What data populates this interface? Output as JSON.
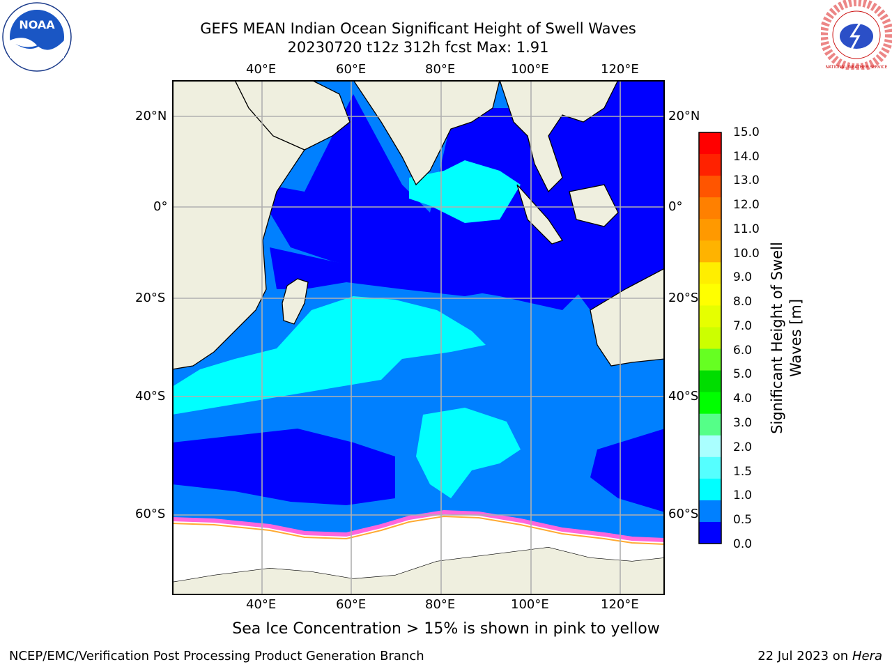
{
  "header": {
    "title_line1": "GEFS MEAN Indian Ocean Significant Height of Swell Waves",
    "title_line2": "20230720 t12z 312h fcst   Max: 1.91"
  },
  "logos": {
    "left": "NOAA",
    "right": "NATIONAL WEATHER SERVICE"
  },
  "map": {
    "lon_ticks_top": [
      "40°E",
      "60°E",
      "80°E",
      "100°E",
      "120°E"
    ],
    "lon_ticks_bottom": [
      "40°E",
      "60°E",
      "80°E",
      "100°E",
      "120°E"
    ],
    "lat_ticks_left": [
      "20°N",
      "0°",
      "20°S",
      "40°S",
      "60°S"
    ],
    "lat_ticks_right": [
      "20°N",
      "0°",
      "20°S",
      "40°S",
      "60°S"
    ],
    "lon_range": [
      20,
      130
    ],
    "lat_range": [
      -72,
      28
    ],
    "colors": {
      "ocean_main": "#0080ff",
      "ocean_low": "#0000ff",
      "ocean_high": "#00ffff",
      "land": "#efefdf",
      "ice": "#ffffff",
      "ice_edge": "#ff66dd",
      "grid": "#b0b0b0"
    }
  },
  "colorbar": {
    "title_line1": "Significant Height of Swell",
    "title_line2": "Waves [m]",
    "labels": [
      "15.0",
      "14.0",
      "13.0",
      "12.0",
      "11.0",
      "10.0",
      "9.0",
      "8.0",
      "7.0",
      "6.0",
      "5.0",
      "4.0",
      "3.0",
      "2.0",
      "1.5",
      "1.0",
      "0.5",
      "0.0"
    ],
    "colors_top_to_bottom": [
      "#ff0000",
      "#ff2200",
      "#ff5500",
      "#ff8000",
      "#ff9900",
      "#ffb300",
      "#ffee00",
      "#ffff00",
      "#e6ff00",
      "#ccff00",
      "#66ff22",
      "#00dd00",
      "#00ff00",
      "#55ff88",
      "#aaffff",
      "#55ffff",
      "#00ffff",
      "#0080ff",
      "#0000ff"
    ]
  },
  "note": "Sea Ice Concentration > 15% is shown in pink to yellow",
  "footer": {
    "left": "NCEP/EMC/Verification Post Processing Product Generation Branch",
    "right_date": "22 Jul 2023 on ",
    "right_host": "Hera"
  }
}
